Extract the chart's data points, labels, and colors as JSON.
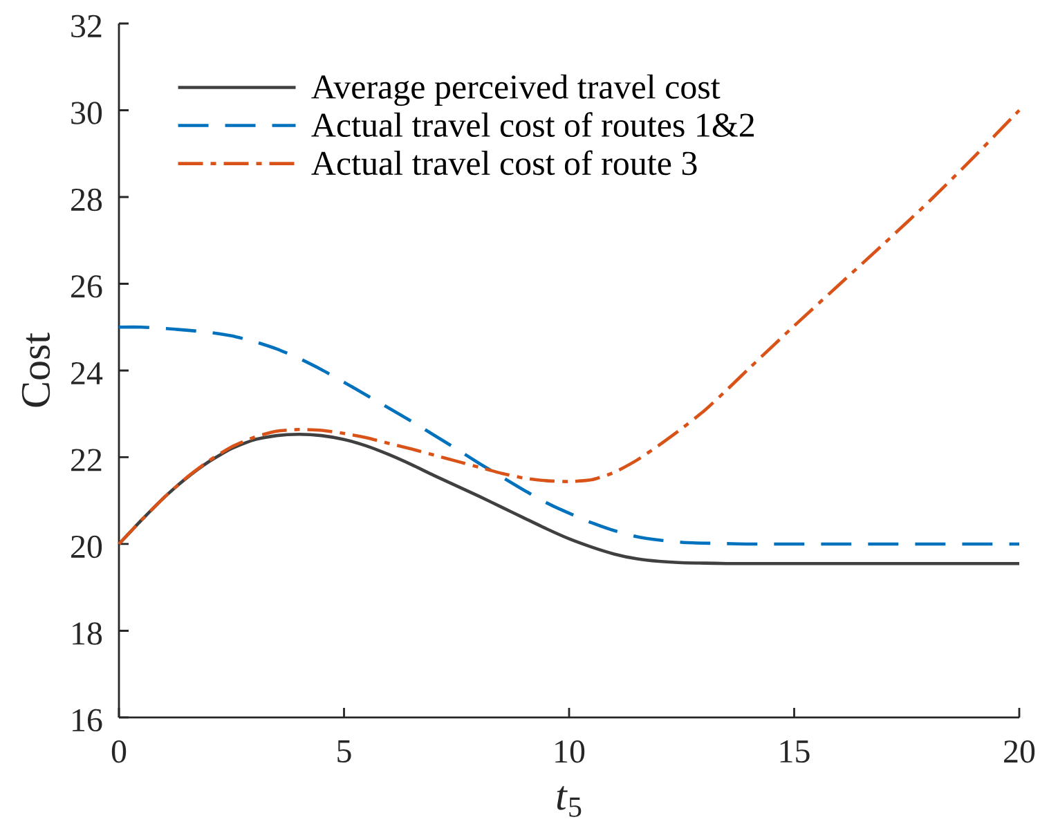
{
  "chart_data": {
    "type": "line",
    "xlabel": "*t*$_{5}$",
    "ylabel": "Cost",
    "xlim": [
      0,
      20
    ],
    "ylim": [
      16,
      32
    ],
    "xticks": [
      0,
      5,
      10,
      15,
      20
    ],
    "yticks": [
      16,
      18,
      20,
      22,
      24,
      26,
      28,
      30,
      32
    ],
    "legend": "top left",
    "x": [
      0,
      0.5,
      1,
      1.5,
      2,
      2.5,
      3,
      3.5,
      4,
      4.5,
      5,
      5.5,
      6,
      6.5,
      7,
      7.5,
      8,
      8.5,
      9,
      9.5,
      10,
      10.5,
      11,
      11.5,
      12,
      12.5,
      13,
      13.5,
      14,
      15,
      16,
      17,
      18,
      19,
      20
    ],
    "series": [
      {
        "name": "Average perceived travel cost",
        "color": "#404040",
        "line_style": "solid",
        "values": [
          20.0,
          20.55,
          21.07,
          21.52,
          21.9,
          22.2,
          22.4,
          22.5,
          22.53,
          22.5,
          22.41,
          22.26,
          22.06,
          21.83,
          21.58,
          21.34,
          21.1,
          20.85,
          20.6,
          20.35,
          20.12,
          19.93,
          19.77,
          19.66,
          19.6,
          19.57,
          19.56,
          19.55,
          19.55,
          19.55,
          19.55,
          19.55,
          19.55,
          19.55,
          19.55
        ]
      },
      {
        "name": "Actual travel cost of routes 1&2",
        "color": "#0072bd",
        "line_style": "dashed",
        "values": [
          25.0,
          25.0,
          24.97,
          24.93,
          24.88,
          24.8,
          24.67,
          24.5,
          24.28,
          24.02,
          23.73,
          23.43,
          23.13,
          22.83,
          22.51,
          22.19,
          21.86,
          21.55,
          21.24,
          20.95,
          20.71,
          20.49,
          20.31,
          20.17,
          20.09,
          20.04,
          20.02,
          20.01,
          20.0,
          20.0,
          20.0,
          20.0,
          20.0,
          20.0,
          20.0
        ]
      },
      {
        "name": "Actual travel cost of route 3",
        "color": "#d95319",
        "line_style": "dashdot",
        "values": [
          20.0,
          20.55,
          21.07,
          21.53,
          21.92,
          22.24,
          22.46,
          22.6,
          22.64,
          22.62,
          22.55,
          22.45,
          22.32,
          22.19,
          22.05,
          21.91,
          21.77,
          21.63,
          21.52,
          21.46,
          21.44,
          21.48,
          21.65,
          21.93,
          22.28,
          22.66,
          23.07,
          23.55,
          24.05,
          25.03,
          25.98,
          26.93,
          27.9,
          28.93,
          30.0
        ]
      }
    ]
  }
}
